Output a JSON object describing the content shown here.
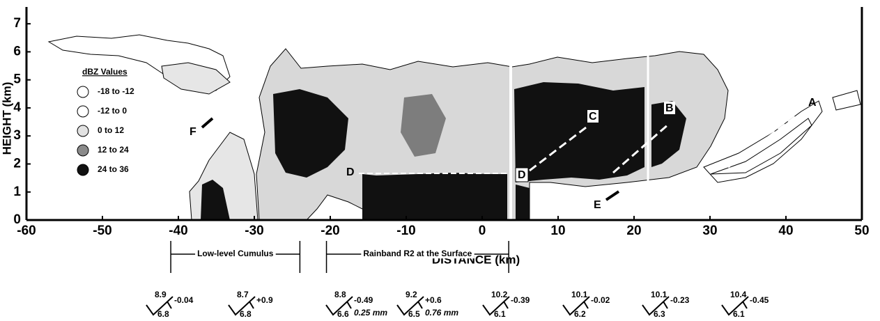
{
  "chart_data": {
    "type": "section",
    "xlabel": "DISTANCE (km)",
    "ylabel": "HEIGHT (km)",
    "xlim": [
      -60,
      50
    ],
    "ylim": [
      0,
      7.6
    ],
    "xticks": [
      -60,
      -50,
      -40,
      -30,
      -20,
      -10,
      0,
      10,
      20,
      30,
      40,
      50
    ],
    "yticks": [
      0,
      1,
      2,
      3,
      4,
      5,
      6,
      7
    ],
    "legend": {
      "title": "dBZ Values",
      "entries": [
        {
          "label": "-18 to -12",
          "color": "#ffffff"
        },
        {
          "label": "-12 to  0",
          "color": "#ffffff"
        },
        {
          "label": "0 to 12",
          "color": "#e2e2e2"
        },
        {
          "label": "12 to 24",
          "color": "#8a8a8a"
        },
        {
          "label": "24 to 36",
          "color": "#111111"
        }
      ]
    },
    "annotations": [
      "A",
      "B",
      "C",
      "D",
      "D",
      "E",
      "F"
    ],
    "spans": [
      "Low-level Cumulus",
      "Rainband R2 at the Surface"
    ],
    "stations": [
      {
        "top": "8.9",
        "change": "-0.04",
        "bottom": "6.8"
      },
      {
        "top": "8.7",
        "change": "+0.9",
        "bottom": "6.8"
      },
      {
        "top": "8.8",
        "change": "-0.49",
        "bottom": "6.6",
        "rain": "0.25 mm"
      },
      {
        "top": "9.2",
        "change": "+0.6",
        "bottom": "6.5",
        "rain": "0.76 mm"
      },
      {
        "top": "10.2",
        "change": "-0.39",
        "bottom": "6.1"
      },
      {
        "top": "10.1",
        "change": "-0.02",
        "bottom": "6.2"
      },
      {
        "top": "10.1",
        "change": "-0.23",
        "bottom": "6.3"
      },
      {
        "top": "10.4",
        "change": "-0.45",
        "bottom": "6.1"
      }
    ]
  }
}
